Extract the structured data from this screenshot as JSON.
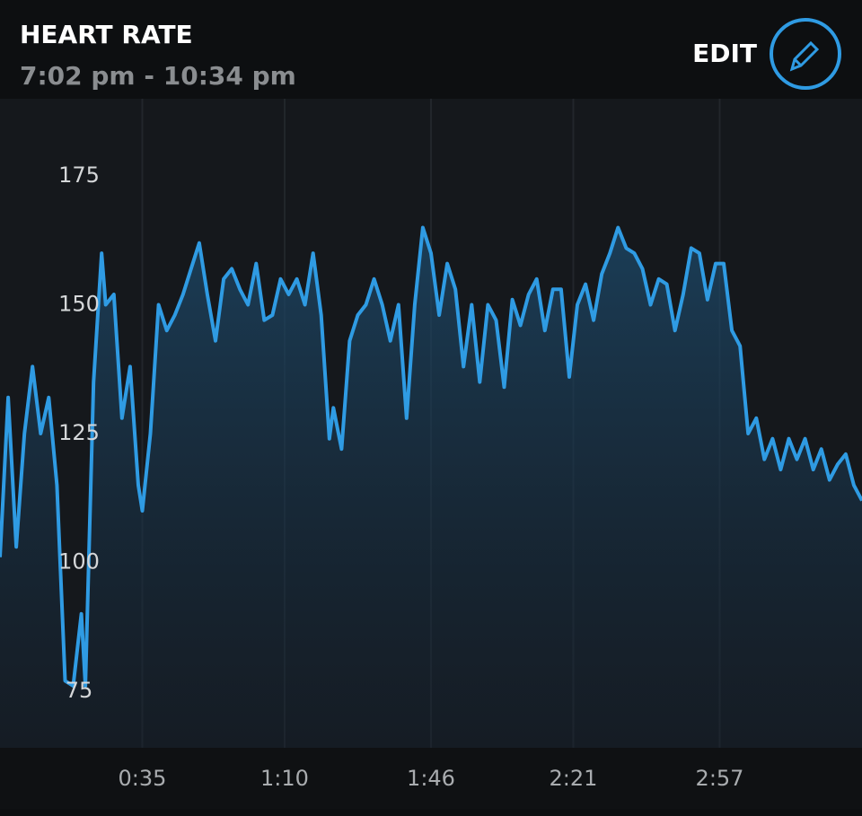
{
  "chart_data": {
    "type": "area",
    "title": "HEART RATE",
    "subtitle": "7:02 pm - 10:34 pm",
    "action": "EDIT",
    "x": [
      0,
      2,
      4,
      6,
      8,
      10,
      12,
      14,
      16,
      18,
      20,
      21,
      23,
      25,
      26,
      28,
      30,
      32,
      34,
      35,
      37,
      39,
      41,
      43,
      45,
      47,
      49,
      51,
      53,
      55,
      57,
      59,
      61,
      63,
      65,
      67,
      69,
      71,
      73,
      75,
      77,
      79,
      81,
      82,
      84,
      86,
      88,
      90,
      92,
      94,
      96,
      98,
      100,
      102,
      104,
      106,
      108,
      110,
      112,
      114,
      116,
      118,
      120,
      122,
      124,
      126,
      128,
      130,
      132,
      134,
      136,
      138,
      140,
      142,
      144,
      146,
      148,
      150,
      152,
      154,
      156,
      158,
      160,
      162,
      164,
      166,
      168,
      170,
      172,
      174,
      176,
      178,
      180,
      182,
      184,
      186,
      188,
      190,
      192,
      194,
      196,
      198,
      200,
      202,
      204,
      206,
      208,
      210,
      212
    ],
    "series": [
      {
        "name": "Heart rate",
        "color": "#2f9be3",
        "values": [
          101,
          132,
          103,
          125,
          138,
          125,
          132,
          115,
          77,
          76,
          90,
          76,
          135,
          160,
          150,
          152,
          128,
          138,
          115,
          110,
          125,
          150,
          145,
          148,
          152,
          157,
          162,
          152,
          143,
          155,
          157,
          153,
          150,
          158,
          147,
          148,
          155,
          152,
          155,
          150,
          160,
          148,
          124,
          130,
          122,
          143,
          148,
          150,
          155,
          150,
          143,
          150,
          128,
          150,
          165,
          160,
          148,
          158,
          153,
          138,
          150,
          135,
          150,
          147,
          134,
          151,
          146,
          152,
          155,
          145,
          153,
          153,
          136,
          150,
          154,
          147,
          156,
          160,
          165,
          161,
          160,
          157,
          150,
          155,
          154,
          145,
          152,
          161,
          160,
          151,
          158,
          158,
          145,
          142,
          125,
          128,
          120,
          124,
          118,
          124,
          120,
          124,
          118,
          122,
          116,
          119,
          121,
          115,
          112
        ]
      }
    ],
    "xlim": [
      0,
      212
    ],
    "xticks": [
      {
        "value": 35,
        "label": "0:35"
      },
      {
        "value": 70,
        "label": "1:10"
      },
      {
        "value": 106,
        "label": "1:46"
      },
      {
        "value": 141,
        "label": "2:21"
      },
      {
        "value": 177,
        "label": "2:57"
      }
    ],
    "ylim": [
      64,
      190
    ],
    "yticks": [
      75,
      100,
      125,
      150,
      175
    ],
    "grid": true
  }
}
